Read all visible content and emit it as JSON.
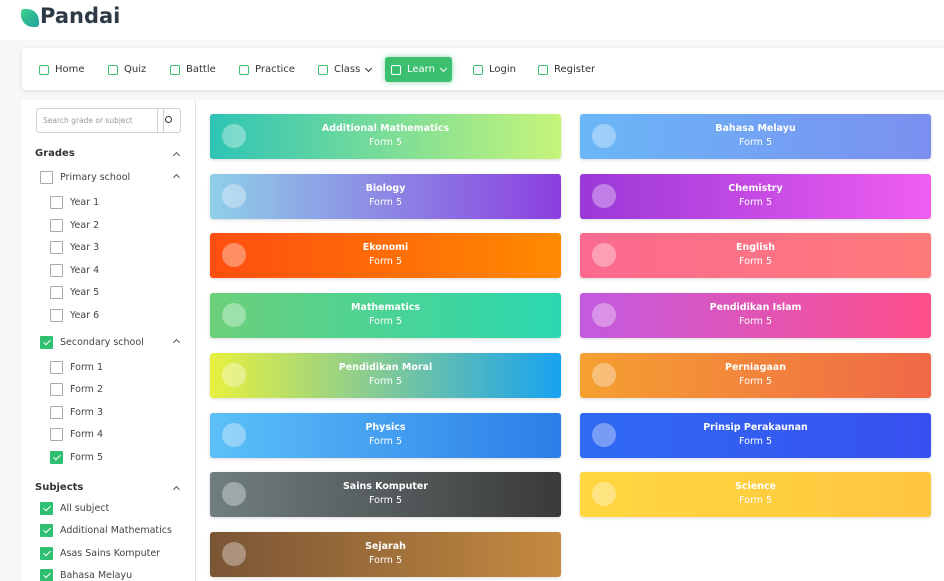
{
  "header": {
    "logo": "Pandai"
  },
  "nav": [
    {
      "label": "Home",
      "active": false,
      "dropdown": false
    },
    {
      "label": "Quiz",
      "active": false,
      "dropdown": false
    },
    {
      "label": "Battle",
      "active": false,
      "dropdown": false
    },
    {
      "label": "Practice",
      "active": false,
      "dropdown": false
    },
    {
      "label": "Class",
      "active": false,
      "dropdown": true
    },
    {
      "label": "Learn",
      "active": true,
      "dropdown": true
    },
    {
      "label": "Login",
      "active": false,
      "dropdown": false
    },
    {
      "label": "Register",
      "active": false,
      "dropdown": false
    }
  ],
  "sidebar": {
    "search_placeholder": "Search grade or subject",
    "grades_title": "Grades",
    "groups": [
      {
        "label": "Primary school",
        "checked": false,
        "items": [
          {
            "label": "Year 1",
            "checked": false
          },
          {
            "label": "Year 2",
            "checked": false
          },
          {
            "label": "Year 3",
            "checked": false
          },
          {
            "label": "Year 4",
            "checked": false
          },
          {
            "label": "Year 5",
            "checked": false
          },
          {
            "label": "Year 6",
            "checked": false
          }
        ]
      },
      {
        "label": "Secondary school",
        "checked": true,
        "items": [
          {
            "label": "Form 1",
            "checked": false
          },
          {
            "label": "Form 2",
            "checked": false
          },
          {
            "label": "Form 3",
            "checked": false
          },
          {
            "label": "Form 4",
            "checked": false
          },
          {
            "label": "Form 5",
            "checked": true
          }
        ]
      }
    ],
    "subjects_title": "Subjects",
    "subjects": [
      {
        "label": "All subject",
        "checked": true
      },
      {
        "label": "Additional Mathematics",
        "checked": true
      },
      {
        "label": "Asas Sains Komputer",
        "checked": true
      },
      {
        "label": "Bahasa Melayu",
        "checked": true
      }
    ]
  },
  "cards": [
    {
      "title": "Additional Mathematics",
      "subtitle": "Form 5",
      "colors": [
        "#2ec4b6",
        "#c6f57a"
      ]
    },
    {
      "title": "Bahasa Melayu",
      "subtitle": "Form 5",
      "colors": [
        "#6ab7f7",
        "#7b8ff0"
      ]
    },
    {
      "title": "Biology",
      "subtitle": "Form 5",
      "colors": [
        "#8ed0e8",
        "#8b3fe0"
      ]
    },
    {
      "title": "Chemistry",
      "subtitle": "Form 5",
      "colors": [
        "#9a38d8",
        "#f05ef0"
      ]
    },
    {
      "title": "Ekonomi",
      "subtitle": "Form 5",
      "colors": [
        "#ff4e10",
        "#ff8a00"
      ]
    },
    {
      "title": "English",
      "subtitle": "Form 5",
      "colors": [
        "#fb6a8f",
        "#ff7a7a"
      ]
    },
    {
      "title": "Mathematics",
      "subtitle": "Form 5",
      "colors": [
        "#6ccf7a",
        "#2ad8b0"
      ]
    },
    {
      "title": "Pendidikan Islam",
      "subtitle": "Form 5",
      "colors": [
        "#c25ae0",
        "#ff4f8a"
      ]
    },
    {
      "title": "Pendidikan Moral",
      "subtitle": "Form 5",
      "colors": [
        "#e8f040",
        "#17a2f0"
      ]
    },
    {
      "title": "Perniagaan",
      "subtitle": "Form 5",
      "colors": [
        "#f5a030",
        "#f06848"
      ]
    },
    {
      "title": "Physics",
      "subtitle": "Form 5",
      "colors": [
        "#5cc0f8",
        "#2b7ee8"
      ]
    },
    {
      "title": "Prinsip Perakaunan",
      "subtitle": "Form 5",
      "colors": [
        "#2f6af2",
        "#3850f0"
      ]
    },
    {
      "title": "Sains Komputer",
      "subtitle": "Form 5",
      "colors": [
        "#707e80",
        "#3a3a3a"
      ]
    },
    {
      "title": "Science",
      "subtitle": "Form 5",
      "colors": [
        "#ffd740",
        "#ffc640"
      ]
    },
    {
      "title": "Sejarah",
      "subtitle": "Form 5",
      "colors": [
        "#7a5535",
        "#c48a40"
      ]
    }
  ]
}
